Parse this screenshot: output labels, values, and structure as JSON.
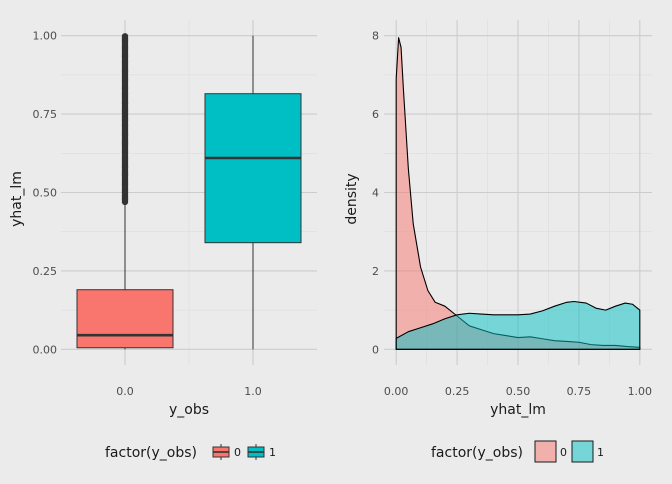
{
  "chart_data": [
    {
      "type": "boxplot",
      "xlabel": "y_obs",
      "ylabel": "yhat_lm",
      "categories": [
        "0.0",
        "1.0"
      ],
      "x_values": [
        0,
        1
      ],
      "xlim": [
        -0.5,
        1.5
      ],
      "ylim": [
        -0.05,
        1.05
      ],
      "y_ticks": [
        0,
        0.25,
        0.5,
        0.75,
        1
      ],
      "y_tick_labels": [
        "0.00",
        "0.25",
        "0.50",
        "0.75",
        "1.00"
      ],
      "boxes": [
        {
          "group": "0",
          "min": 0.0,
          "q1": 0.005,
          "median": 0.045,
          "q3": 0.19,
          "whisker_high": 0.47,
          "outliers_from": 0.47,
          "outliers_to": 1.0,
          "color": "#F8766D"
        },
        {
          "group": "1",
          "min": 0.0,
          "q1": 0.34,
          "median": 0.61,
          "q3": 0.815,
          "whisker_high": 1.0,
          "color": "#00BFC4"
        }
      ],
      "legend": {
        "title": "factor(y_obs)",
        "labels": [
          "0",
          "1"
        ],
        "colors": [
          "#F8766D",
          "#00BFC4"
        ],
        "position": "bottom"
      },
      "grid": true
    },
    {
      "type": "area",
      "xlabel": "yhat_lm",
      "ylabel": "density",
      "xlim": [
        -0.05,
        1.05
      ],
      "ylim": [
        -0.4,
        8.4
      ],
      "x_ticks": [
        0,
        0.25,
        0.5,
        0.75,
        1
      ],
      "x_tick_labels": [
        "0.00",
        "0.25",
        "0.50",
        "0.75",
        "1.00"
      ],
      "y_ticks": [
        0,
        2,
        4,
        6,
        8
      ],
      "y_tick_labels": [
        "0",
        "2",
        "4",
        "6",
        "8"
      ],
      "series": [
        {
          "group": "0",
          "color": "#F8766D",
          "opacity": 0.5,
          "x": [
            0,
            0.01,
            0.02,
            0.03,
            0.05,
            0.07,
            0.1,
            0.13,
            0.16,
            0.2,
            0.25,
            0.3,
            0.35,
            0.4,
            0.45,
            0.5,
            0.55,
            0.6,
            0.65,
            0.7,
            0.75,
            0.8,
            0.85,
            0.9,
            0.95,
            1.0
          ],
          "y": [
            6.9,
            7.95,
            7.7,
            6.6,
            4.6,
            3.2,
            2.1,
            1.5,
            1.2,
            1.1,
            0.85,
            0.6,
            0.5,
            0.4,
            0.35,
            0.3,
            0.32,
            0.27,
            0.22,
            0.2,
            0.18,
            0.12,
            0.1,
            0.1,
            0.07,
            0.05
          ]
        },
        {
          "group": "1",
          "color": "#00BFC4",
          "opacity": 0.5,
          "x": [
            0,
            0.05,
            0.1,
            0.15,
            0.2,
            0.25,
            0.3,
            0.35,
            0.4,
            0.45,
            0.5,
            0.55,
            0.6,
            0.65,
            0.7,
            0.73,
            0.78,
            0.82,
            0.86,
            0.9,
            0.94,
            0.97,
            1.0
          ],
          "y": [
            0.28,
            0.45,
            0.55,
            0.65,
            0.78,
            0.88,
            0.92,
            0.9,
            0.88,
            0.88,
            0.88,
            0.9,
            0.98,
            1.1,
            1.2,
            1.22,
            1.18,
            1.05,
            1.0,
            1.1,
            1.18,
            1.15,
            1.0
          ]
        }
      ],
      "legend": {
        "title": "factor(y_obs)",
        "labels": [
          "0",
          "1"
        ],
        "colors": [
          "#F8766D",
          "#00BFC4"
        ],
        "position": "bottom"
      },
      "grid": true
    }
  ]
}
